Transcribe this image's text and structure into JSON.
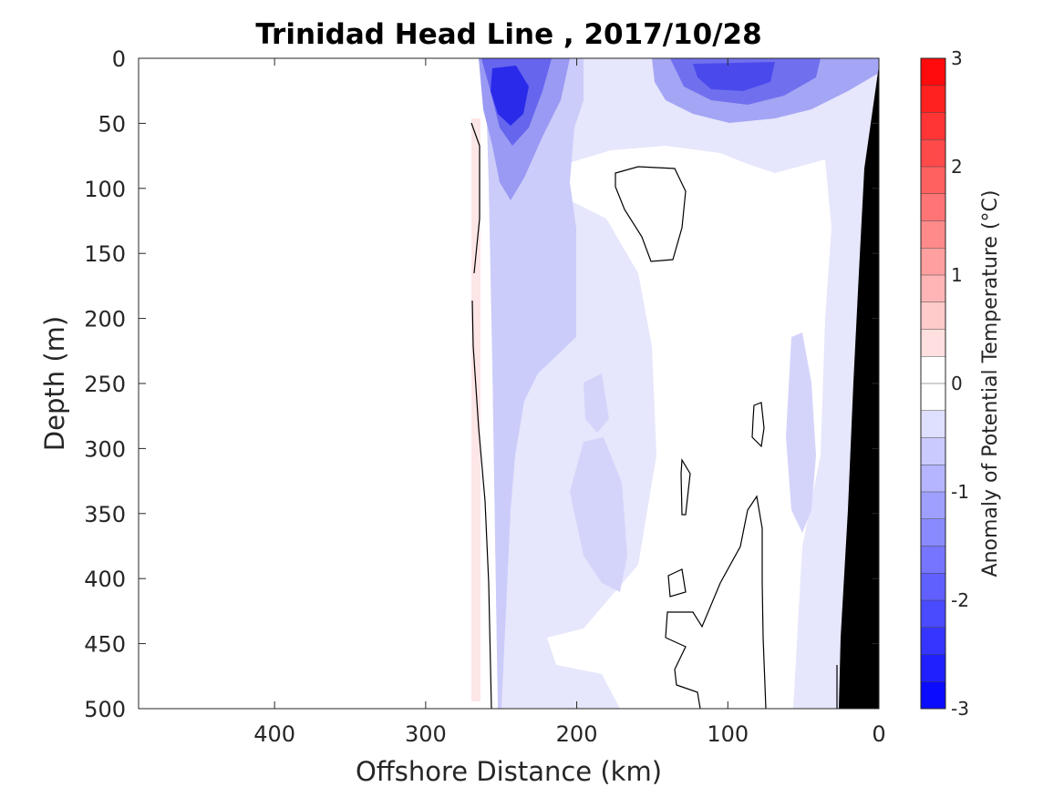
{
  "chart_data": {
    "type": "contour",
    "title": "Trinidad Head Line , 2017/10/28",
    "xlabel": "Offshore Distance (km)",
    "ylabel": "Depth (m)",
    "xlim": [
      490,
      0
    ],
    "ylim": [
      500,
      0
    ],
    "x_reversed": true,
    "y_reversed": true,
    "xticks": [
      400,
      300,
      200,
      100,
      0
    ],
    "yticks": [
      0,
      50,
      100,
      150,
      200,
      250,
      300,
      350,
      400,
      450,
      500
    ],
    "colorbar": {
      "label": "Anomaly of Potential Temperature (°C)",
      "range": [
        -3,
        3
      ],
      "step": 0.25,
      "ticks": [
        3,
        2,
        1,
        0,
        -1,
        -2,
        -3
      ],
      "cold_color": "#0000ff",
      "warm_color": "#ff0000",
      "neutral_color": "#ffffff"
    },
    "zero_contour_color": "#000000",
    "bathymetry_color": "#000000",
    "data_extent_km": [
      270,
      0
    ],
    "features": [
      {
        "name": "cold core near surface",
        "x": 245,
        "y": 35,
        "anomaly": -2.25
      },
      {
        "name": "cold band near surface",
        "x": 110,
        "y": 25,
        "anomaly": -1.25
      },
      {
        "name": "warm strip at offshore edge",
        "x": 268,
        "y": 250,
        "anomaly": 0.25
      }
    ]
  }
}
